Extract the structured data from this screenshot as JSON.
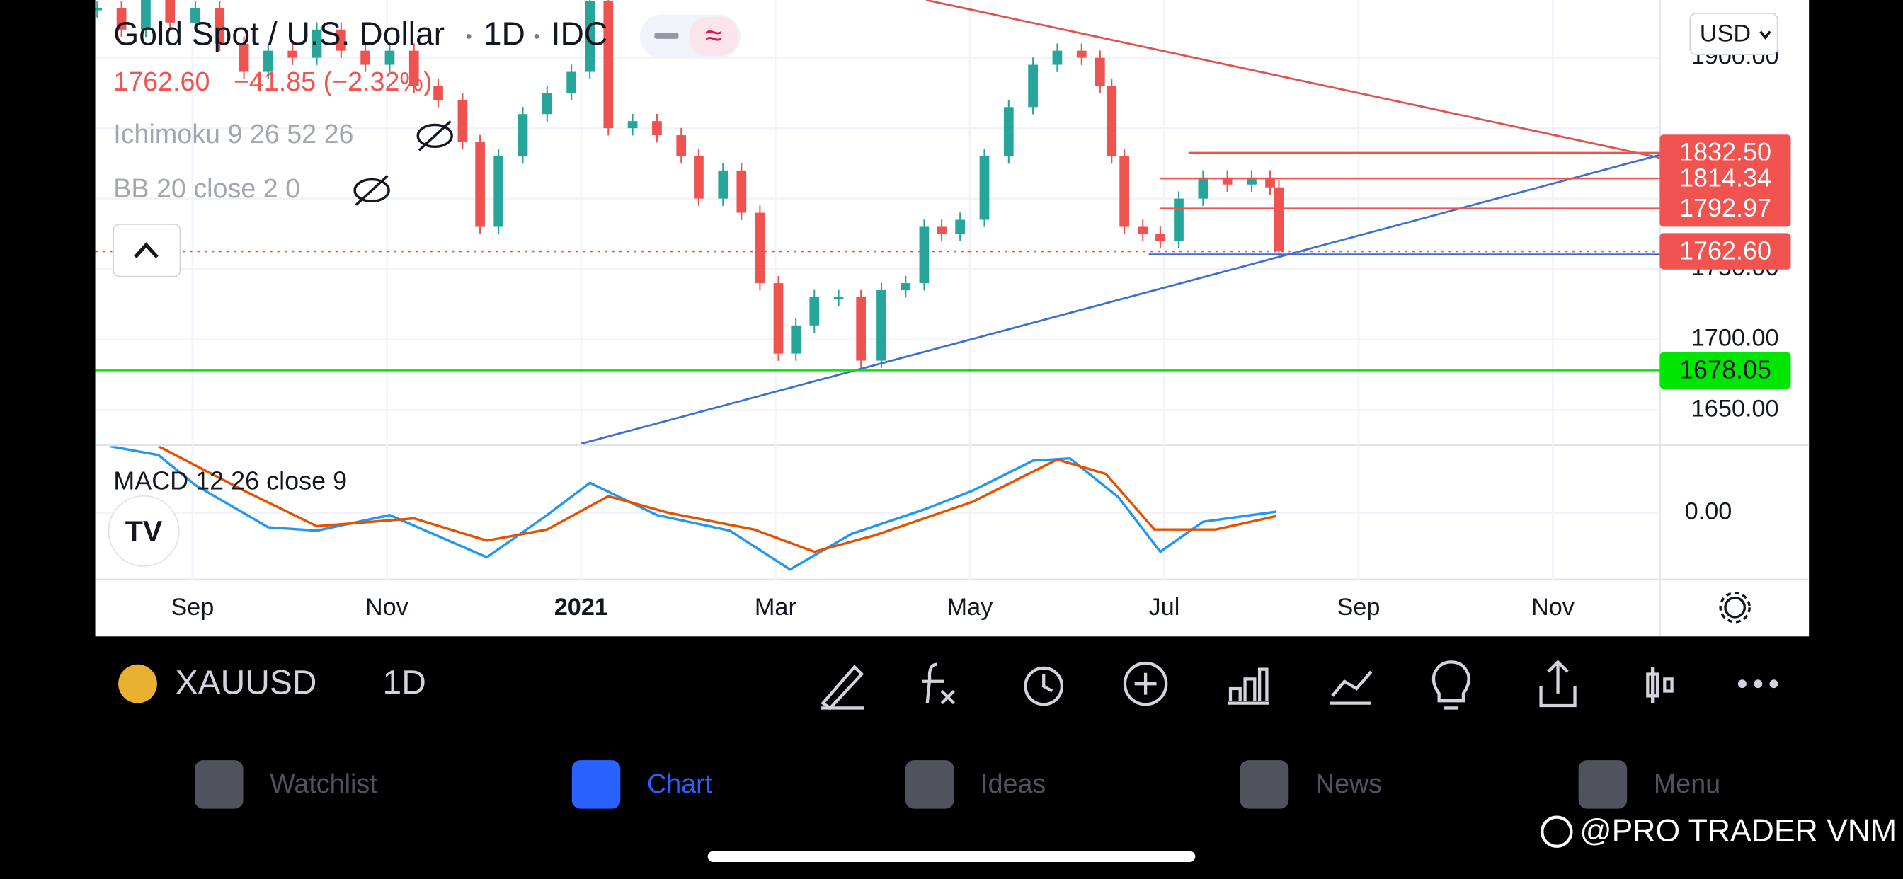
{
  "header": {
    "title": "Gold Spot / U.S. Dollar",
    "interval": "1D",
    "source": "IDC",
    "last": "1762.60",
    "change": "−41.85 (−2.32%)",
    "indicator_1": "Ichimoku 9 26 52 26",
    "indicator_2": "BB 20 close 2 0",
    "currency": "USD"
  },
  "chart_data": [
    {
      "type": "candlestick",
      "xlim": [
        -1,
        15.1
      ],
      "ylim": [
        1626,
        1941
      ],
      "x": [
        -0.98,
        -0.73,
        -0.48,
        -0.23,
        0.03,
        0.28,
        0.53,
        0.78,
        1.03,
        1.28,
        1.53,
        1.78,
        2.03,
        2.28,
        2.53,
        2.78,
        2.96,
        3.15,
        3.4,
        3.65,
        3.9,
        4.09,
        4.28,
        4.53,
        4.78,
        5.03,
        5.21,
        5.46,
        5.65,
        5.84,
        6.03,
        6.21,
        6.4,
        6.65,
        6.88,
        7.09,
        7.34,
        7.53,
        7.71,
        7.9,
        8.15,
        8.4,
        8.65,
        8.9,
        9.15,
        9.34,
        9.46,
        9.59,
        9.78,
        9.96,
        10.15,
        10.4,
        10.65,
        10.9,
        11.09,
        11.18
      ],
      "values": [
        1935,
        1920,
        1945,
        1925,
        1935,
        1910,
        1890,
        1905,
        1900,
        1920,
        1905,
        1895,
        1905,
        1880,
        1870,
        1840,
        1780,
        1830,
        1860,
        1875,
        1890,
        1940,
        1850,
        1855,
        1845,
        1830,
        1800,
        1820,
        1790,
        1740,
        1690,
        1710,
        1730,
        1730,
        1685,
        1735,
        1740,
        1780,
        1775,
        1785,
        1830,
        1865,
        1895,
        1905,
        1900,
        1880,
        1830,
        1780,
        1775,
        1770,
        1800,
        1815,
        1810,
        1815,
        1808,
        1762.6
      ],
      "up_color": "#26a69a",
      "down_color": "#ef5350",
      "yticks": [
        {
          "value": 1900,
          "label": "1900.00"
        },
        {
          "value": 1850
        },
        {
          "value": 1800
        },
        {
          "value": 1750,
          "label": "1750.00"
        },
        {
          "value": 1700,
          "label": "1700.00"
        },
        {
          "value": 1650,
          "label": "1650.00"
        }
      ],
      "grid": true,
      "levels": [
        {
          "value": 1832.5,
          "label": "1832.50",
          "color": "#f05350",
          "start": 10.25
        },
        {
          "value": 1814.34,
          "label": "1814.34",
          "color": "#f05350",
          "start": 9.96
        },
        {
          "value": 1792.97,
          "label": "1792.97",
          "color": "#f05350",
          "start": 9.96
        },
        {
          "value": 1762.6,
          "label": "1762.60",
          "color": "#f05350",
          "start": -1,
          "dotted": true
        },
        {
          "value": 1678.05,
          "label": "1678.05",
          "color": "#00e600",
          "start": -1
        }
      ],
      "trendlines": [
        {
          "color": "#e0524f",
          "x": [
            7.55,
            15.1
          ],
          "y": [
            1941,
            1829
          ]
        },
        {
          "color": "#3b6fd8",
          "x": [
            4.0,
            15.1
          ],
          "y": [
            1626,
            1831
          ]
        },
        {
          "color": "#3b6fd8",
          "x": [
            9.84,
            15.1
          ],
          "y": [
            1760.3,
            1760.3
          ]
        }
      ]
    },
    {
      "type": "line",
      "title": "MACD 12 26 close 9",
      "xlim": [
        -1,
        15.1
      ],
      "ylim": [
        -60,
        60
      ],
      "yticks": [
        {
          "value": 0,
          "label": "0.00"
        }
      ],
      "xticks": [
        {
          "value": 0,
          "label": "Sep"
        },
        {
          "value": 2,
          "label": "Nov"
        },
        {
          "value": 4,
          "label": "2021",
          "bold": true
        },
        {
          "value": 6,
          "label": "Mar"
        },
        {
          "value": 8,
          "label": "May"
        },
        {
          "value": 10,
          "label": "Jul"
        },
        {
          "value": 12,
          "label": "Sep"
        },
        {
          "value": 14,
          "label": "Nov"
        }
      ],
      "series": [
        {
          "color": "#2196f3",
          "x": [
            -0.85,
            -0.35,
            0.03,
            0.78,
            1.28,
            2.03,
            3.03,
            3.65,
            4.09,
            4.78,
            5.53,
            6.15,
            6.78,
            7.53,
            8.03,
            8.65,
            9.03,
            9.53,
            9.96,
            10.4,
            11.15
          ],
          "values": [
            60,
            52,
            25,
            -13,
            -16,
            -2,
            -40,
            -2,
            27,
            -2,
            -16,
            -51,
            -19,
            3,
            20,
            47,
            49,
            14,
            -35,
            -8,
            1
          ]
        },
        {
          "color": "#e65100",
          "x": [
            -0.35,
            0.53,
            1.28,
            2.28,
            3.03,
            3.65,
            4.28,
            4.9,
            5.78,
            6.4,
            7.03,
            8.03,
            8.9,
            9.4,
            9.9,
            10.53,
            11.15
          ],
          "values": [
            60,
            20,
            -12,
            -5,
            -25,
            -15,
            15,
            0,
            -15,
            -35,
            -20,
            10,
            48,
            35,
            -15,
            -15,
            -3
          ]
        }
      ]
    }
  ],
  "toolbar": {
    "symbol": "XAUUSD",
    "interval": "1D"
  },
  "tabs": [
    "Watchlist",
    "Chart",
    "Ideas",
    "News",
    "Menu"
  ],
  "watermark": "@PRO TRADER VNM"
}
